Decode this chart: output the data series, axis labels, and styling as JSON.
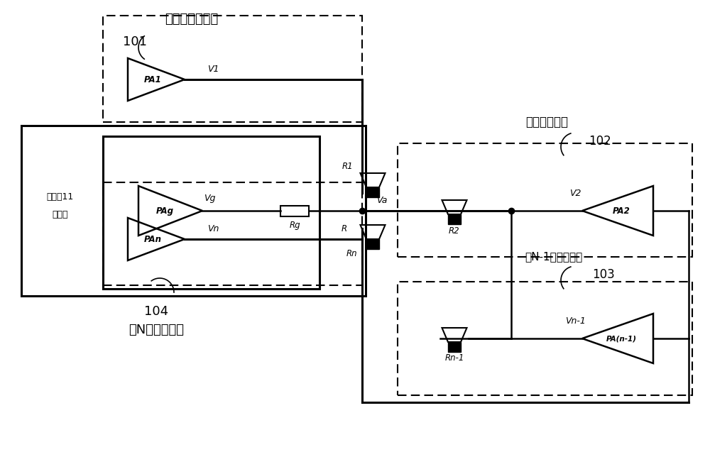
{
  "bg_color": "#ffffff",
  "labels": {
    "module1_title": "第一个声道模块",
    "module1_id": "101",
    "module2_title": "第二声道模块",
    "module2_id": "102",
    "module3_title": "第N-1个声道模块",
    "module3_id": "103",
    "module4_title": "第N个声道模块",
    "module4_id": "104",
    "audio_line1": "音频输11",
    "audio_line2": "出模块",
    "PA1": "PA1",
    "PAg": "PAg",
    "PAn": "PAn",
    "PA2": "PA2",
    "PAn1": "PA(n-1)",
    "V1": "V1",
    "Vg": "Vg",
    "Vn": "Vn",
    "V2": "V2",
    "Vn1": "Vn-1",
    "R1": "R1",
    "Rg": "Rg",
    "Rn": "Rn",
    "R2": "R2",
    "Rn1": "Rn-1",
    "Va": "Va",
    "R_label": "R"
  }
}
